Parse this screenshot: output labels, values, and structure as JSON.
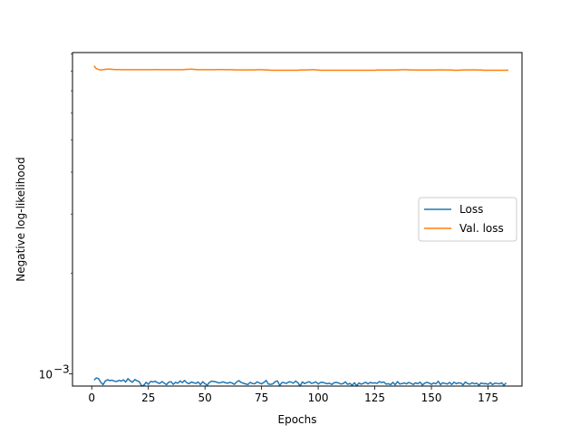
{
  "chart_data": {
    "type": "line",
    "title": "",
    "xlabel": "Epochs",
    "ylabel": "Negative log-likelihood",
    "xlim": [
      -8.5,
      190
    ],
    "ylim": [
      0.00092,
      0.0091
    ],
    "yscale": "log",
    "x_ticks": [
      0,
      25,
      50,
      75,
      100,
      125,
      150,
      175
    ],
    "y_tick_labels": [
      {
        "value": 0.001,
        "base": "10",
        "exponent": "−3"
      }
    ],
    "grid": false,
    "legend_position": "center-right",
    "series": [
      {
        "name": "Loss",
        "color": "#1f77b4",
        "x_start": 1,
        "x_step": 1,
        "values": [
          0.000958,
          0.000973,
          0.000968,
          0.000944,
          0.000929,
          0.000953,
          0.000961,
          0.000955,
          0.000958,
          0.000951,
          0.000949,
          0.000957,
          0.000952,
          0.00096,
          0.000946,
          0.000968,
          0.000953,
          0.000945,
          0.000962,
          0.000954,
          0.000948,
          0.000921,
          0.000925,
          0.000944,
          0.000931,
          0.00095,
          0.000946,
          0.000951,
          0.000942,
          0.000936,
          0.000949,
          0.000939,
          0.000929,
          0.000945,
          0.000948,
          0.000931,
          0.000944,
          0.000938,
          0.000953,
          0.000942,
          0.000956,
          0.000941,
          0.000935,
          0.000946,
          0.000941,
          0.000937,
          0.000946,
          0.000929,
          0.000948,
          0.000935,
          0.000926,
          0.000944,
          0.000951,
          0.000949,
          0.000946,
          0.00094,
          0.000942,
          0.000947,
          0.000941,
          0.000938,
          0.000944,
          0.000939,
          0.000931,
          0.000946,
          0.000955,
          0.000943,
          0.000938,
          0.000933,
          0.00093,
          0.000944,
          0.000936,
          0.000935,
          0.000947,
          0.00094,
          0.000934,
          0.000943,
          0.000956,
          0.000933,
          0.000931,
          0.000934,
          0.000948,
          0.000953,
          0.000924,
          0.000943,
          0.000941,
          0.000937,
          0.000947,
          0.000946,
          0.000938,
          0.000952,
          0.000942,
          0.000921,
          0.000947,
          0.000936,
          0.000943,
          0.000948,
          0.000937,
          0.000941,
          0.000947,
          0.000933,
          0.000943,
          0.000944,
          0.000939,
          0.000935,
          0.000938,
          0.00093,
          0.000941,
          0.000943,
          0.00094,
          0.000933,
          0.000936,
          0.000947,
          0.000931,
          0.000937,
          0.000925,
          0.000941,
          0.000922,
          0.00094,
          0.000932,
          0.000938,
          0.000944,
          0.000934,
          0.000943,
          0.000939,
          0.000941,
          0.000937,
          0.000949,
          0.000942,
          0.000946,
          0.000932,
          0.000935,
          0.000929,
          0.000944,
          0.000928,
          0.000949,
          0.000933,
          0.000936,
          0.00094,
          0.000934,
          0.000943,
          0.000937,
          0.00093,
          0.000941,
          0.000935,
          0.000945,
          0.000927,
          0.000938,
          0.000944,
          0.000939,
          0.000931,
          0.00094,
          0.000934,
          0.000951,
          0.000929,
          0.000941,
          0.000937,
          0.000933,
          0.000943,
          0.00093,
          0.000945,
          0.000935,
          0.000941,
          0.000939,
          0.000928,
          0.000946,
          0.000936,
          0.000932,
          0.000941,
          0.000934,
          0.000938,
          0.000926,
          0.00094,
          0.000935,
          0.000936,
          0.000931,
          0.000942,
          0.000929,
          0.000939,
          0.000937,
          0.000934,
          0.000941,
          0.000925,
          0.00094
        ]
      },
      {
        "name": "Val. loss",
        "color": "#ff7f0e",
        "x_start": 1,
        "x_step": 1,
        "values": [
          0.0083,
          0.00815,
          0.0081,
          0.00808,
          0.00809,
          0.00811,
          0.00812,
          0.00812,
          0.00811,
          0.0081,
          0.0081,
          0.0081,
          0.00809,
          0.00809,
          0.00809,
          0.00809,
          0.00809,
          0.00809,
          0.00809,
          0.00809,
          0.00809,
          0.00809,
          0.00809,
          0.00809,
          0.00809,
          0.00809,
          0.00809,
          0.0081,
          0.0081,
          0.00809,
          0.00809,
          0.00809,
          0.00809,
          0.00809,
          0.00809,
          0.00809,
          0.00809,
          0.00809,
          0.00809,
          0.00809,
          0.0081,
          0.00811,
          0.00811,
          0.00812,
          0.00811,
          0.0081,
          0.00809,
          0.00809,
          0.00809,
          0.00809,
          0.00809,
          0.00809,
          0.00809,
          0.00809,
          0.0081,
          0.0081,
          0.0081,
          0.0081,
          0.00809,
          0.00809,
          0.00809,
          0.00809,
          0.00808,
          0.00808,
          0.00808,
          0.00808,
          0.00808,
          0.00808,
          0.00808,
          0.00808,
          0.00808,
          0.00808,
          0.00809,
          0.00809,
          0.00809,
          0.00808,
          0.00808,
          0.00807,
          0.00806,
          0.00806,
          0.00806,
          0.00806,
          0.00806,
          0.00806,
          0.00806,
          0.00806,
          0.00806,
          0.00806,
          0.00806,
          0.00806,
          0.00806,
          0.00807,
          0.00807,
          0.00807,
          0.00808,
          0.00808,
          0.00809,
          0.00809,
          0.00808,
          0.00807,
          0.00806,
          0.00806,
          0.00806,
          0.00806,
          0.00806,
          0.00806,
          0.00806,
          0.00806,
          0.00806,
          0.00806,
          0.00806,
          0.00806,
          0.00806,
          0.00806,
          0.00806,
          0.00806,
          0.00806,
          0.00806,
          0.00806,
          0.00806,
          0.00806,
          0.00806,
          0.00806,
          0.00806,
          0.00806,
          0.00807,
          0.00807,
          0.00807,
          0.00807,
          0.00807,
          0.00807,
          0.00807,
          0.00807,
          0.00807,
          0.00808,
          0.00808,
          0.00809,
          0.00809,
          0.00809,
          0.00808,
          0.00808,
          0.00807,
          0.00807,
          0.00807,
          0.00807,
          0.00807,
          0.00807,
          0.00807,
          0.00807,
          0.00807,
          0.00807,
          0.00807,
          0.00808,
          0.00808,
          0.00808,
          0.00808,
          0.00807,
          0.00807,
          0.00807,
          0.00806,
          0.00806,
          0.00806,
          0.00807,
          0.00807,
          0.00808,
          0.00808,
          0.00808,
          0.00808,
          0.00808,
          0.00808,
          0.00807,
          0.00807,
          0.00806,
          0.00806,
          0.00806,
          0.00806,
          0.00806,
          0.00806,
          0.00806,
          0.00806,
          0.00806,
          0.00806,
          0.00806,
          0.00806
        ]
      }
    ]
  }
}
